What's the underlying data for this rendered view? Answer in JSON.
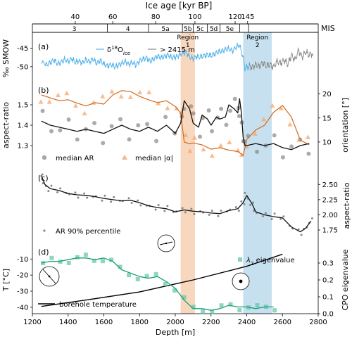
{
  "chart_data": {
    "type": "line",
    "xlabel": "Depth [m]",
    "xlim": [
      1200,
      2800
    ],
    "x_ticks": [
      "1200",
      "1400",
      "1600",
      "1800",
      "2000",
      "2200",
      "2400",
      "2600",
      "2800"
    ],
    "top_axis": {
      "label": "Ice age [kyr BP]",
      "ticks": [
        {
          "label": "40",
          "depth": 1440
        },
        {
          "label": "60",
          "depth": 1650
        },
        {
          "label": "80",
          "depth": 1890
        },
        {
          "label": "100",
          "depth": 2110
        },
        {
          "label": "120",
          "depth": 2335
        },
        {
          "label": "145",
          "depth": 2405
        }
      ]
    },
    "mis": {
      "label": "MIS",
      "stages": [
        {
          "label": "3",
          "start": 1250,
          "end": 1620
        },
        {
          "label": "4",
          "start": 1620,
          "end": 1850
        },
        {
          "label": "5a",
          "start": 1850,
          "end": 2040
        },
        {
          "label": "5b",
          "start": 2040,
          "end": 2100
        },
        {
          "label": "5c",
          "start": 2100,
          "end": 2180
        },
        {
          "label": "5d",
          "start": 2180,
          "end": 2250
        },
        {
          "label": "5e",
          "start": 2250,
          "end": 2360
        },
        {
          "label": "",
          "start": 2360,
          "end": 2410
        },
        {
          "label": "",
          "start": 2410,
          "end": 2800
        }
      ]
    },
    "regions": [
      {
        "label": "Region\n1",
        "start": 2030,
        "end": 2110,
        "color": "#f4c9a8"
      },
      {
        "label": "Region\n2",
        "start": 2380,
        "end": 2540,
        "color": "#b3d5ea"
      }
    ],
    "panels": [
      {
        "id": "a",
        "panel_label": "(a)",
        "ylabel": "‰ SMOW",
        "ylim": [
          -52.5,
          -43
        ],
        "y_ticks": [
          "-45",
          "-50"
        ],
        "legend": [
          "δ¹⁸O_ice",
          "> 2415 m"
        ],
        "series": [
          {
            "name": "δ18O ice",
            "color": "#56b4e9",
            "x": [
              1250,
              1280,
              1300,
              1320,
              1340,
              1360,
              1380,
              1400,
              1420,
              1440,
              1460,
              1480,
              1500,
              1520,
              1540,
              1560,
              1580,
              1600,
              1620,
              1640,
              1660,
              1680,
              1700,
              1720,
              1740,
              1760,
              1780,
              1800,
              1820,
              1840,
              1860,
              1880,
              1900,
              1920,
              1940,
              1960,
              1980,
              2000,
              2020,
              2040,
              2060,
              2080,
              2100,
              2120,
              2140,
              2160,
              2180,
              2200,
              2220,
              2240,
              2260,
              2280,
              2300,
              2320,
              2340,
              2360,
              2380,
              2390,
              2400,
              2410,
              2415
            ],
            "y": [
              -48.5,
              -49.5,
              -48.8,
              -48.2,
              -49.2,
              -48.8,
              -48.0,
              -48.6,
              -47.8,
              -48.8,
              -48.4,
              -49.0,
              -48.1,
              -48.7,
              -47.9,
              -49.1,
              -48.3,
              -49.3,
              -49.8,
              -49.4,
              -50.0,
              -49.6,
              -49.1,
              -48.6,
              -49.4,
              -48.8,
              -49.6,
              -48.4,
              -48.0,
              -47.6,
              -48.6,
              -47.9,
              -47.1,
              -47.6,
              -47.2,
              -46.8,
              -47.6,
              -47.4,
              -47.0,
              -46.4,
              -46.0,
              -47.4,
              -47.8,
              -47.2,
              -47.4,
              -47.0,
              -46.8,
              -47.0,
              -46.5,
              -46.0,
              -45.8,
              -45.3,
              -45.1,
              -45.8,
              -44.6,
              -44.2,
              -47.6,
              -50.4,
              -50.0,
              -50.2,
              -49.8
            ]
          },
          {
            "name": "> 2415 m",
            "color": "#888888",
            "x": [
              2415,
              2430,
              2450,
              2470,
              2490,
              2510,
              2530,
              2550,
              2570,
              2590,
              2610,
              2630,
              2650,
              2670,
              2690,
              2710,
              2730,
              2750,
              2770
            ],
            "y": [
              -49.8,
              -50.2,
              -49.4,
              -50.0,
              -48.9,
              -49.8,
              -49.4,
              -50.1,
              -48.6,
              -49.0,
              -48.2,
              -49.4,
              -46.8,
              -48.2,
              -45.6,
              -47.4,
              -46.0,
              -46.8,
              -46.4
            ]
          }
        ]
      },
      {
        "id": "b",
        "panel_label": "(b)",
        "ylabel": "aspect-ratio",
        "ylim": [
          1.2,
          1.6
        ],
        "y_ticks": [
          "1.3",
          "1.4",
          "1.5"
        ],
        "y2label": "orientation [°]",
        "y2lim": [
          5,
          22
        ],
        "y2_ticks": [
          "10",
          "15",
          "20"
        ],
        "legend": [
          "median AR",
          "median |α|"
        ],
        "series": [
          {
            "name": "median AR",
            "axis": "left",
            "color": "#111111",
            "x": [
              1250,
              1300,
              1350,
              1400,
              1450,
              1500,
              1550,
              1600,
              1650,
              1700,
              1750,
              1800,
              1850,
              1900,
              1950,
              2000,
              2030,
              2050,
              2080,
              2100,
              2130,
              2150,
              2180,
              2200,
              2230,
              2250,
              2280,
              2300,
              2330,
              2350,
              2360,
              2370,
              2380,
              2390,
              2400,
              2450,
              2500,
              2550,
              2600,
              2650,
              2700,
              2750
            ],
            "y": [
              1.42,
              1.4,
              1.39,
              1.38,
              1.37,
              1.38,
              1.37,
              1.36,
              1.38,
              1.4,
              1.38,
              1.37,
              1.39,
              1.37,
              1.4,
              1.36,
              1.41,
              1.52,
              1.48,
              1.41,
              1.39,
              1.45,
              1.43,
              1.4,
              1.44,
              1.43,
              1.44,
              1.5,
              1.48,
              1.46,
              1.53,
              1.46,
              1.34,
              1.3,
              1.3,
              1.31,
              1.3,
              1.31,
              1.29,
              1.28,
              1.3,
              1.31
            ]
          },
          {
            "name": "median |α|",
            "axis": "right",
            "color": "#d4691c",
            "x": [
              1250,
              1300,
              1350,
              1400,
              1450,
              1500,
              1550,
              1600,
              1650,
              1700,
              1750,
              1800,
              1850,
              1900,
              1950,
              2000,
              2030,
              2050,
              2080,
              2100,
              2150,
              2200,
              2250,
              2300,
              2350,
              2380,
              2400,
              2450,
              2500,
              2550,
              2600,
              2650,
              2700,
              2750
            ],
            "y": [
              19.8,
              19.2,
              18.6,
              18.8,
              18.1,
              17.5,
              18.2,
              17.9,
              19.8,
              20.7,
              20.5,
              19.5,
              18.8,
              18.2,
              18.6,
              17.4,
              16.0,
              10.0,
              9.6,
              9.8,
              9.4,
              8.5,
              8.8,
              8.3,
              8.0,
              7.2,
              10.5,
              12.5,
              13.5,
              16.2,
              17.6,
              15.2,
              10.4,
              9.4
            ]
          }
        ]
      },
      {
        "id": "c",
        "panel_label": "(c)",
        "ylabel": "aspect-ratio",
        "ylim": [
          1.6,
          2.7
        ],
        "y_ticks": [
          "1.75",
          "2.00",
          "2.25",
          "2.50"
        ],
        "legend": [
          "AR 90% percentile"
        ],
        "series": [
          {
            "name": "AR 90% percentile",
            "color": "#111111",
            "x": [
              1250,
              1270,
              1300,
              1350,
              1400,
              1450,
              1500,
              1550,
              1600,
              1650,
              1700,
              1750,
              1800,
              1850,
              1900,
              1950,
              2000,
              2050,
              2100,
              2150,
              2200,
              2250,
              2300,
              2350,
              2380,
              2400,
              2430,
              2450,
              2500,
              2550,
              2600,
              2650,
              2700,
              2730,
              2760
            ],
            "y": [
              2.65,
              2.5,
              2.43,
              2.4,
              2.35,
              2.33,
              2.32,
              2.3,
              2.27,
              2.25,
              2.23,
              2.24,
              2.2,
              2.15,
              2.12,
              2.1,
              2.05,
              2.08,
              2.06,
              2.05,
              2.03,
              2.02,
              2.07,
              2.1,
              2.2,
              2.32,
              2.18,
              2.05,
              2.0,
              1.97,
              1.95,
              1.8,
              1.72,
              1.78,
              1.9
            ]
          }
        ]
      },
      {
        "id": "d",
        "panel_label": "(d)",
        "ylabel": "T [°C]",
        "ylim": [
          -44,
          -2
        ],
        "y_ticks": [
          "-10",
          "-20",
          "-30",
          "-40"
        ],
        "y2label": "CPO eigenvalue",
        "y2lim": [
          0,
          0.4
        ],
        "y2_ticks": [
          "0.0",
          "0.1",
          "0.2",
          "0.3"
        ],
        "legend": [
          "λ2 eigenvalue",
          "borehole temperature"
        ],
        "series": [
          {
            "name": "borehole temperature",
            "axis": "left",
            "color": "#000000",
            "x": [
              1250,
              1500,
              1800,
              2100,
              2400,
              2600
            ],
            "y": [
              -39.5,
              -35.5,
              -30.5,
              -23.0,
              -14.5,
              -7.0
            ]
          },
          {
            "name": "λ2 eigenvalue",
            "axis": "right",
            "color": "#1a9e77",
            "x": [
              1250,
              1300,
              1350,
              1400,
              1450,
              1500,
              1550,
              1600,
              1650,
              1700,
              1750,
              1800,
              1850,
              1900,
              1950,
              2000,
              2050,
              2100,
              2150,
              2200,
              2250,
              2300,
              2350,
              2400,
              2450,
              2500,
              2550
            ],
            "y": [
              0.3,
              0.31,
              0.31,
              0.32,
              0.33,
              0.33,
              0.32,
              0.33,
              0.31,
              0.26,
              0.24,
              0.22,
              0.21,
              0.22,
              0.19,
              0.15,
              0.08,
              0.03,
              0.03,
              0.02,
              0.03,
              0.05,
              0.04,
              0.04,
              0.03,
              0.04,
              0.04
            ]
          }
        ]
      }
    ]
  }
}
